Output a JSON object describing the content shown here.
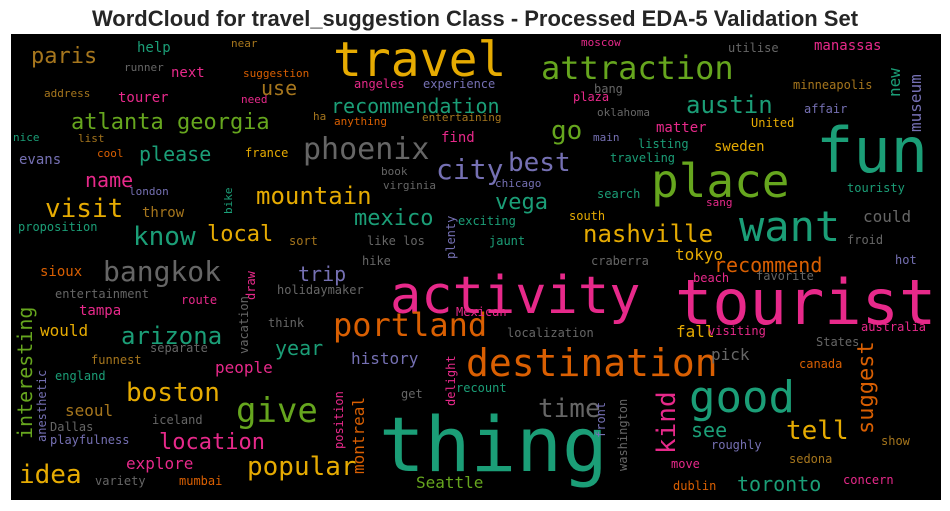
{
  "title": "WordCloud for travel_suggestion Class - Processed EDA-5 Validation Set",
  "colors": {
    "background": "#000000",
    "palette": [
      "#1b9e77",
      "#d95f02",
      "#7570b3",
      "#e7298a",
      "#66a61e",
      "#e6ab02",
      "#a6761d",
      "#666666"
    ]
  },
  "words": [
    {
      "text": "thing",
      "color": "#1b9e77"
    },
    {
      "text": "tourist",
      "color": "#e7298a"
    },
    {
      "text": "activity",
      "color": "#e7298a"
    },
    {
      "text": "travel",
      "color": "#e6ab02"
    },
    {
      "text": "fun",
      "color": "#1b9e77"
    },
    {
      "text": "place",
      "color": "#66a61e"
    },
    {
      "text": "want",
      "color": "#1b9e77"
    },
    {
      "text": "destination",
      "color": "#d95f02"
    },
    {
      "text": "good",
      "color": "#1b9e77"
    },
    {
      "text": "portland",
      "color": "#d95f02"
    },
    {
      "text": "attraction",
      "color": "#66a61e"
    },
    {
      "text": "give",
      "color": "#66a61e"
    },
    {
      "text": "phoenix",
      "color": "#666666"
    },
    {
      "text": "bangkok",
      "color": "#666666"
    },
    {
      "text": "city",
      "color": "#7570b3"
    },
    {
      "text": "best",
      "color": "#7570b3"
    },
    {
      "text": "austin",
      "color": "#1b9e77"
    },
    {
      "text": "atlanta georgia",
      "color": "#66a61e"
    },
    {
      "text": "recommendation",
      "color": "#1b9e77"
    },
    {
      "text": "mountain",
      "color": "#e6ab02"
    },
    {
      "text": "nashville",
      "color": "#e6ab02"
    },
    {
      "text": "know",
      "color": "#1b9e77"
    },
    {
      "text": "visit",
      "color": "#e6ab02"
    },
    {
      "text": "boston",
      "color": "#e6ab02"
    },
    {
      "text": "popular",
      "color": "#e6ab02"
    },
    {
      "text": "arizona",
      "color": "#1b9e77"
    },
    {
      "text": "location",
      "color": "#e7298a"
    },
    {
      "text": "time",
      "color": "#666666"
    },
    {
      "text": "tell",
      "color": "#e6ab02"
    },
    {
      "text": "idea",
      "color": "#e6ab02"
    },
    {
      "text": "toronto",
      "color": "#1b9e77"
    },
    {
      "text": "go",
      "color": "#66a61e"
    },
    {
      "text": "mexico",
      "color": "#1b9e77"
    },
    {
      "text": "vega",
      "color": "#1b9e77"
    },
    {
      "text": "recommend",
      "color": "#d95f02"
    },
    {
      "text": "local",
      "color": "#e6ab02"
    },
    {
      "text": "paris",
      "color": "#a6761d"
    },
    {
      "text": "please",
      "color": "#1b9e77"
    },
    {
      "text": "name",
      "color": "#e7298a"
    },
    {
      "text": "trip",
      "color": "#7570b3"
    },
    {
      "text": "year",
      "color": "#1b9e77"
    },
    {
      "text": "see",
      "color": "#1b9e77"
    },
    {
      "text": "use",
      "color": "#a6761d"
    },
    {
      "text": "history",
      "color": "#7570b3"
    },
    {
      "text": "people",
      "color": "#e7298a"
    },
    {
      "text": "explore",
      "color": "#e7298a"
    },
    {
      "text": "could",
      "color": "#666666"
    },
    {
      "text": "tokyo",
      "color": "#e6ab02"
    },
    {
      "text": "fall",
      "color": "#e6ab02"
    },
    {
      "text": "pick",
      "color": "#666666"
    },
    {
      "text": "Seattle",
      "color": "#66a61e"
    },
    {
      "text": "seoul",
      "color": "#a6761d"
    },
    {
      "text": "would",
      "color": "#e6ab02"
    },
    {
      "text": "tampa",
      "color": "#e7298a"
    },
    {
      "text": "sioux",
      "color": "#d95f02"
    },
    {
      "text": "evans",
      "color": "#7570b3"
    },
    {
      "text": "help",
      "color": "#1b9e77"
    },
    {
      "text": "next",
      "color": "#e7298a"
    },
    {
      "text": "tourer",
      "color": "#e7298a"
    },
    {
      "text": "find",
      "color": "#e7298a"
    },
    {
      "text": "matter",
      "color": "#e7298a"
    },
    {
      "text": "sweden",
      "color": "#e6ab02"
    },
    {
      "text": "throw",
      "color": "#a6761d"
    },
    {
      "text": "manassas",
      "color": "#e7298a"
    },
    {
      "text": "utilise",
      "color": "#666666"
    },
    {
      "text": "moscow",
      "color": "#e7298a"
    },
    {
      "text": "near",
      "color": "#a6761d"
    },
    {
      "text": "runner",
      "color": "#666666"
    },
    {
      "text": "suggestion",
      "color": "#d95f02"
    },
    {
      "text": "angeles",
      "color": "#e7298a"
    },
    {
      "text": "experience",
      "color": "#7570b3"
    },
    {
      "text": "bang",
      "color": "#666666"
    },
    {
      "text": "plaza",
      "color": "#e7298a"
    },
    {
      "text": "minneapolis",
      "color": "#a6761d"
    },
    {
      "text": "affair",
      "color": "#7570b3"
    },
    {
      "text": "address",
      "color": "#a6761d"
    },
    {
      "text": "need",
      "color": "#e7298a"
    },
    {
      "text": "oklahoma",
      "color": "#666666"
    },
    {
      "text": "ha",
      "color": "#a6761d"
    },
    {
      "text": "anything",
      "color": "#d95f02"
    },
    {
      "text": "entertaining",
      "color": "#a6761d"
    },
    {
      "text": "United",
      "color": "#e6ab02"
    },
    {
      "text": "nice",
      "color": "#1b9e77"
    },
    {
      "text": "list",
      "color": "#a6761d"
    },
    {
      "text": "cool",
      "color": "#d95f02"
    },
    {
      "text": "france",
      "color": "#e6ab02"
    },
    {
      "text": "main",
      "color": "#7570b3"
    },
    {
      "text": "listing",
      "color": "#1b9e77"
    },
    {
      "text": "traveling",
      "color": "#1b9e77"
    },
    {
      "text": "book",
      "color": "#666666"
    },
    {
      "text": "london",
      "color": "#7570b3"
    },
    {
      "text": "virginia",
      "color": "#666666"
    },
    {
      "text": "chicago",
      "color": "#7570b3"
    },
    {
      "text": "touristy",
      "color": "#1b9e77"
    },
    {
      "text": "search",
      "color": "#1b9e77"
    },
    {
      "text": "sang",
      "color": "#e7298a"
    },
    {
      "text": "south",
      "color": "#e6ab02"
    },
    {
      "text": "exciting",
      "color": "#1b9e77"
    },
    {
      "text": "froid",
      "color": "#666666"
    },
    {
      "text": "proposition",
      "color": "#1b9e77"
    },
    {
      "text": "sort",
      "color": "#a6761d"
    },
    {
      "text": "like los",
      "color": "#666666"
    },
    {
      "text": "jaunt",
      "color": "#1b9e77"
    },
    {
      "text": "hot",
      "color": "#7570b3"
    },
    {
      "text": "hike",
      "color": "#666666"
    },
    {
      "text": "craberra",
      "color": "#666666"
    },
    {
      "text": "beach",
      "color": "#e7298a"
    },
    {
      "text": "favorite",
      "color": "#666666"
    },
    {
      "text": "entertainment",
      "color": "#666666"
    },
    {
      "text": "holidaymaker",
      "color": "#666666"
    },
    {
      "text": "route",
      "color": "#e7298a"
    },
    {
      "text": "Mexican",
      "color": "#e7298a"
    },
    {
      "text": "think",
      "color": "#666666"
    },
    {
      "text": "localization",
      "color": "#666666"
    },
    {
      "text": "visiting",
      "color": "#e7298a"
    },
    {
      "text": "australia",
      "color": "#e7298a"
    },
    {
      "text": "States",
      "color": "#666666"
    },
    {
      "text": "separate",
      "color": "#666666"
    },
    {
      "text": "funnest",
      "color": "#a6761d"
    },
    {
      "text": "england",
      "color": "#1b9e77"
    },
    {
      "text": "canada",
      "color": "#d95f02"
    },
    {
      "text": "recount",
      "color": "#1b9e77"
    },
    {
      "text": "get",
      "color": "#666666"
    },
    {
      "text": "iceland",
      "color": "#666666"
    },
    {
      "text": "Dallas",
      "color": "#666666"
    },
    {
      "text": "playfulness",
      "color": "#7570b3"
    },
    {
      "text": "show",
      "color": "#a6761d"
    },
    {
      "text": "roughly",
      "color": "#7570b3"
    },
    {
      "text": "sedona",
      "color": "#a6761d"
    },
    {
      "text": "move",
      "color": "#e7298a"
    },
    {
      "text": "variety",
      "color": "#666666"
    },
    {
      "text": "mumbai",
      "color": "#d95f02"
    },
    {
      "text": "dublin",
      "color": "#d95f02"
    },
    {
      "text": "concern",
      "color": "#e7298a"
    },
    {
      "text": "interesting",
      "color": "#66a61e"
    },
    {
      "text": "suggest",
      "color": "#d95f02"
    },
    {
      "text": "kind",
      "color": "#e7298a"
    },
    {
      "text": "montreal",
      "color": "#d95f02"
    },
    {
      "text": "new",
      "color": "#1b9e77"
    },
    {
      "text": "museum",
      "color": "#7570b3"
    },
    {
      "text": "bike",
      "color": "#1b9e77"
    },
    {
      "text": "draw",
      "color": "#e7298a"
    },
    {
      "text": "vacation",
      "color": "#666666"
    },
    {
      "text": "plenty",
      "color": "#7570b3"
    },
    {
      "text": "position",
      "color": "#e7298a"
    },
    {
      "text": "delight",
      "color": "#e7298a"
    },
    {
      "text": "front",
      "color": "#7570b3"
    },
    {
      "text": "washington",
      "color": "#666666"
    },
    {
      "text": "anesthetic",
      "color": "#7570b3"
    }
  ]
}
